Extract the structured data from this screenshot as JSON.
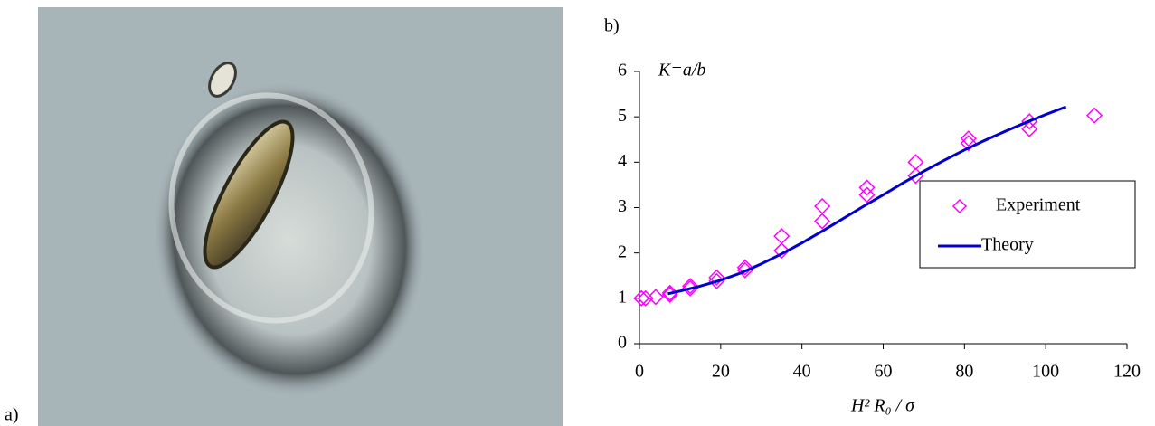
{
  "panel_labels": {
    "a": "a)",
    "b": "b)"
  },
  "chart_data": {
    "type": "scatter",
    "y_label": "K=a/b",
    "x_label": "H² R₀ / σ",
    "xlim": [
      0,
      120
    ],
    "xticks": [
      0,
      20,
      40,
      60,
      80,
      100,
      120
    ],
    "ylim": [
      0,
      6
    ],
    "yticks": [
      0,
      1,
      2,
      3,
      4,
      5,
      6
    ],
    "grid": false,
    "legend": "right",
    "series": [
      {
        "name": "Experiment",
        "type": "scatter",
        "color": "#ff00ff",
        "x": [
          0.5,
          1.5,
          4,
          7.5,
          7.5,
          12.5,
          12.5,
          19,
          19,
          26,
          26,
          35,
          35,
          45,
          45,
          56,
          56,
          68,
          68,
          81,
          81,
          96,
          96,
          112
        ],
        "y": [
          1.0,
          1.0,
          1.03,
          1.08,
          1.12,
          1.22,
          1.27,
          1.38,
          1.46,
          1.62,
          1.68,
          2.05,
          2.37,
          2.7,
          3.03,
          3.28,
          3.44,
          3.7,
          4.0,
          4.42,
          4.52,
          4.73,
          4.9,
          5.03
        ]
      },
      {
        "name": "Theory",
        "type": "line",
        "color": "#0000cc",
        "x": [
          7,
          10,
          15,
          20,
          25,
          30,
          35,
          40,
          45,
          50,
          55,
          60,
          65,
          70,
          75,
          80,
          85,
          90,
          95,
          100,
          105
        ],
        "y": [
          1.1,
          1.16,
          1.27,
          1.4,
          1.56,
          1.76,
          1.98,
          2.22,
          2.48,
          2.75,
          3.02,
          3.28,
          3.55,
          3.8,
          4.04,
          4.27,
          4.48,
          4.68,
          4.87,
          5.05,
          5.22
        ]
      }
    ]
  }
}
